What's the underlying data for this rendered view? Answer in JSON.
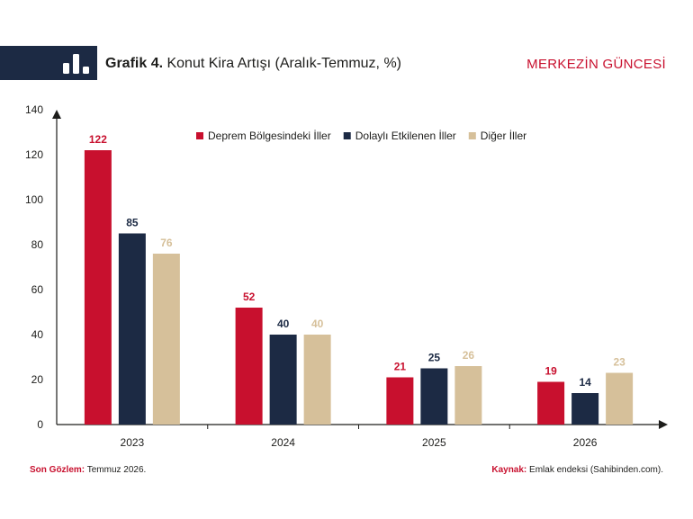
{
  "header": {
    "title_number": "Grafik 4.",
    "title_text": "Konut Kira Artışı (Aralık-Temmuz, %)",
    "brand": "MERKEZİN GÜNCESİ",
    "icon": "bar-chart-icon"
  },
  "footer": {
    "left_label": "Son Gözlem:",
    "left_value": "Temmuz 2026.",
    "right_label": "Kaynak:",
    "right_value": "Emlak endeksi (Sahibinden.com)."
  },
  "colors": {
    "accent": "#c8102e",
    "navy": "#1c2a44",
    "beige": "#d6c09a"
  },
  "chart_data": {
    "type": "bar",
    "categories": [
      "2023",
      "2024",
      "2025",
      "2026"
    ],
    "series": [
      {
        "name": "Deprem Bölgesindeki İller",
        "values": [
          122,
          52,
          21,
          19
        ],
        "color": "#c8102e"
      },
      {
        "name": "Dolaylı Etkilenen İller",
        "values": [
          85,
          40,
          25,
          14
        ],
        "color": "#1c2a44"
      },
      {
        "name": "Diğer İller",
        "values": [
          76,
          40,
          26,
          23
        ],
        "color": "#d6c09a"
      }
    ],
    "yticks": [
      0,
      20,
      40,
      60,
      80,
      100,
      120,
      140
    ],
    "ylim": [
      0,
      140
    ],
    "legend_position": "top",
    "grid": false
  }
}
